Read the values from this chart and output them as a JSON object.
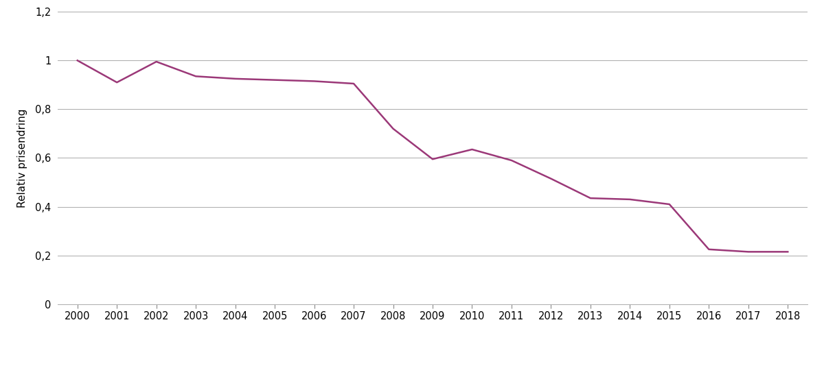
{
  "years": [
    2000,
    2001,
    2002,
    2003,
    2004,
    2005,
    2006,
    2007,
    2008,
    2009,
    2010,
    2011,
    2012,
    2013,
    2014,
    2015,
    2016,
    2017,
    2018
  ],
  "values": [
    1.0,
    0.91,
    0.995,
    0.935,
    0.925,
    0.92,
    0.915,
    0.905,
    0.72,
    0.595,
    0.635,
    0.59,
    0.515,
    0.435,
    0.43,
    0.41,
    0.225,
    0.215,
    0.215
  ],
  "line_color": "#9b3878",
  "line_width": 1.8,
  "ylabel": "Relativ prisendring",
  "ylim": [
    0,
    1.2
  ],
  "yticks": [
    0,
    0.2,
    0.4,
    0.6,
    0.8,
    1.0,
    1.2
  ],
  "ytick_labels": [
    "0",
    "0,2",
    "0,4",
    "0,6",
    "0,8",
    "1",
    "1,2"
  ],
  "xlim": [
    1999.5,
    2018.5
  ],
  "grid_color": "#aaaaaa",
  "grid_linewidth": 0.7,
  "background_color": "#ffffff",
  "ylabel_fontsize": 11,
  "tick_fontsize": 10.5
}
